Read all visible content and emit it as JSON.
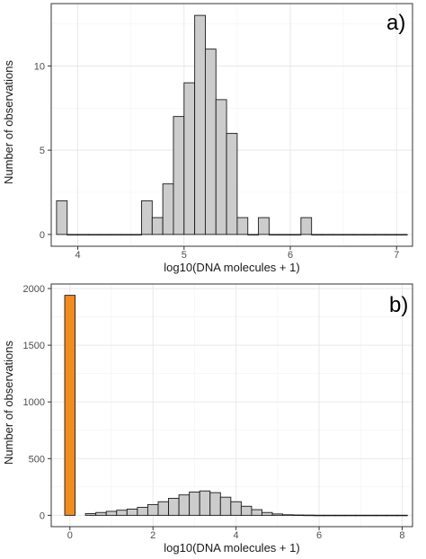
{
  "colors": {
    "bar_grey": "#cccccc",
    "bar_orange": "#f28c1e",
    "bar_outline": "#1a1a1a",
    "panel_border": "#333333"
  },
  "chart_data": [
    {
      "type": "bar",
      "panel_label": "a)",
      "xlabel": "log10(DNA molecules + 1)",
      "ylabel": "Number of observations",
      "xlim": [
        3.75,
        7.15
      ],
      "ylim": [
        -0.7,
        13.7
      ],
      "x_ticks": [
        4,
        5,
        6,
        7
      ],
      "x_tick_labels": [
        "4",
        "5",
        "6",
        "7"
      ],
      "y_ticks": [
        0,
        5,
        10
      ],
      "y_tick_labels": [
        "0",
        "5",
        "10"
      ],
      "grid": true,
      "bin_width": 0.1,
      "bin_starts": [
        3.8,
        3.9,
        4.0,
        4.1,
        4.2,
        4.3,
        4.4,
        4.5,
        4.6,
        4.7,
        4.8,
        4.9,
        5.0,
        5.1,
        5.2,
        5.3,
        5.4,
        5.5,
        5.6,
        5.7,
        5.8,
        5.9,
        6.0,
        6.1,
        6.2,
        6.3,
        6.4,
        6.5,
        6.6,
        6.7,
        6.8,
        6.9,
        7.0
      ],
      "values": [
        2,
        0,
        0,
        0,
        0,
        0,
        0,
        0,
        2,
        1,
        3,
        7,
        9,
        13,
        11,
        8,
        6,
        1,
        0,
        1,
        0,
        0,
        0,
        1,
        0,
        0,
        0,
        0,
        0,
        0,
        0,
        0,
        0
      ]
    },
    {
      "type": "bar",
      "panel_label": "b)",
      "xlabel": "log10(DNA molecules + 1)",
      "ylabel": "Number of observations",
      "xlim": [
        -0.45,
        8.25
      ],
      "ylim": [
        -100,
        2040
      ],
      "x_ticks": [
        0,
        2,
        4,
        6,
        8
      ],
      "x_tick_labels": [
        "0",
        "2",
        "4",
        "6",
        "8"
      ],
      "y_ticks": [
        0,
        500,
        1000,
        1500,
        2000
      ],
      "y_tick_labels": [
        "0",
        "500",
        "1000",
        "1500",
        "2000"
      ],
      "grid": true,
      "bin_width": 0.25,
      "highlight": {
        "bin_start": -0.125,
        "value": 1940
      },
      "bin_starts": [
        0.375,
        0.625,
        0.875,
        1.125,
        1.375,
        1.625,
        1.875,
        2.125,
        2.375,
        2.625,
        2.875,
        3.125,
        3.375,
        3.625,
        3.875,
        4.125,
        4.375,
        4.625,
        4.875,
        5.125,
        5.375,
        5.625,
        5.875,
        6.125,
        6.375,
        6.625,
        6.875,
        7.125,
        7.375,
        7.625,
        7.875
      ],
      "values": [
        15,
        25,
        35,
        45,
        55,
        70,
        95,
        120,
        150,
        180,
        205,
        215,
        200,
        160,
        120,
        80,
        50,
        25,
        12,
        5,
        3,
        2,
        1,
        1,
        1,
        1,
        1,
        1,
        1,
        1,
        1
      ]
    }
  ]
}
